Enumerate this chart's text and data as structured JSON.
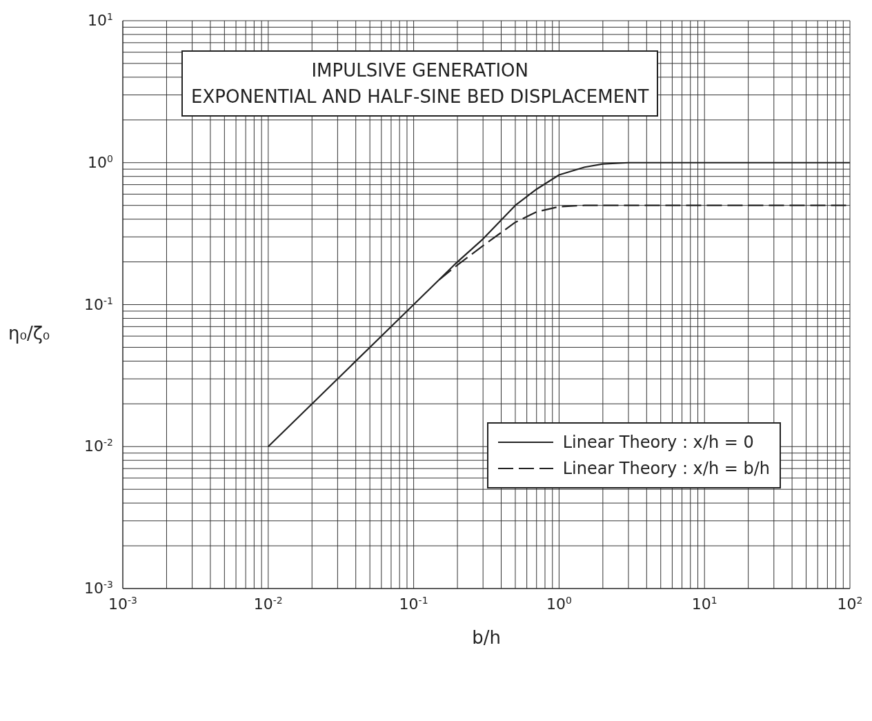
{
  "chart_data": {
    "type": "line",
    "title": "IMPULSIVE GENERATION\nEXPONENTIAL AND HALF-SINE BED DISPLACEMENT",
    "xlabel": "b/h",
    "ylabel": "η₀/ζ₀",
    "log": "xy",
    "grid": true,
    "legend": "bottom right",
    "marker": "none",
    "xlim": [
      0.001,
      100
    ],
    "ylim": [
      0.001,
      10
    ],
    "xticks": [
      {
        "value": 0.001,
        "label": "10$^{-3}$"
      },
      {
        "value": 0.002,
        "label": null
      },
      {
        "value": 0.003,
        "label": null
      },
      {
        "value": 0.004,
        "label": null
      },
      {
        "value": 0.005,
        "label": null
      },
      {
        "value": 0.006,
        "label": null
      },
      {
        "value": 0.007,
        "label": null
      },
      {
        "value": 0.008,
        "label": null
      },
      {
        "value": 0.009,
        "label": null
      },
      {
        "value": 0.01,
        "label": "10$^{-2}$"
      },
      {
        "value": 0.02,
        "label": null
      },
      {
        "value": 0.03,
        "label": null
      },
      {
        "value": 0.04,
        "label": null
      },
      {
        "value": 0.05,
        "label": null
      },
      {
        "value": 0.06,
        "label": null
      },
      {
        "value": 0.07,
        "label": null
      },
      {
        "value": 0.08,
        "label": null
      },
      {
        "value": 0.09,
        "label": null
      },
      {
        "value": 0.1,
        "label": "10$^{-1}$"
      },
      {
        "value": 0.2,
        "label": null
      },
      {
        "value": 0.3,
        "label": null
      },
      {
        "value": 0.4,
        "label": null
      },
      {
        "value": 0.5,
        "label": null
      },
      {
        "value": 0.6,
        "label": null
      },
      {
        "value": 0.7,
        "label": null
      },
      {
        "value": 0.8,
        "label": null
      },
      {
        "value": 0.9,
        "label": null
      },
      {
        "value": 1,
        "label": "10$^{0}$"
      },
      {
        "value": 2,
        "label": null
      },
      {
        "value": 3,
        "label": null
      },
      {
        "value": 4,
        "label": null
      },
      {
        "value": 5,
        "label": null
      },
      {
        "value": 6,
        "label": null
      },
      {
        "value": 7,
        "label": null
      },
      {
        "value": 8,
        "label": null
      },
      {
        "value": 9,
        "label": null
      },
      {
        "value": 10,
        "label": "10$^{1}$"
      },
      {
        "value": 20,
        "label": null
      },
      {
        "value": 30,
        "label": null
      },
      {
        "value": 40,
        "label": null
      },
      {
        "value": 50,
        "label": null
      },
      {
        "value": 60,
        "label": null
      },
      {
        "value": 70,
        "label": null
      },
      {
        "value": 80,
        "label": null
      },
      {
        "value": 90,
        "label": null
      },
      {
        "value": 100,
        "label": "10$^{2}$"
      }
    ],
    "yticks": [
      {
        "value": 0.001,
        "label": "10$^{-3}$"
      },
      {
        "value": 0.002,
        "label": null
      },
      {
        "value": 0.003,
        "label": null
      },
      {
        "value": 0.004,
        "label": null
      },
      {
        "value": 0.005,
        "label": null
      },
      {
        "value": 0.006,
        "label": null
      },
      {
        "value": 0.007,
        "label": null
      },
      {
        "value": 0.008,
        "label": null
      },
      {
        "value": 0.009,
        "label": null
      },
      {
        "value": 0.01,
        "label": "10$^{-2}$"
      },
      {
        "value": 0.02,
        "label": null
      },
      {
        "value": 0.03,
        "label": null
      },
      {
        "value": 0.04,
        "label": null
      },
      {
        "value": 0.05,
        "label": null
      },
      {
        "value": 0.06,
        "label": null
      },
      {
        "value": 0.07,
        "label": null
      },
      {
        "value": 0.08,
        "label": null
      },
      {
        "value": 0.09,
        "label": null
      },
      {
        "value": 0.1,
        "label": "10$^{-1}$"
      },
      {
        "value": 0.2,
        "label": null
      },
      {
        "value": 0.3,
        "label": null
      },
      {
        "value": 0.4,
        "label": null
      },
      {
        "value": 0.5,
        "label": null
      },
      {
        "value": 0.6,
        "label": null
      },
      {
        "value": 0.7,
        "label": null
      },
      {
        "value": 0.8,
        "label": null
      },
      {
        "value": 0.9,
        "label": null
      },
      {
        "value": 1,
        "label": "10$^{0}$"
      },
      {
        "value": 2,
        "label": null
      },
      {
        "value": 3,
        "label": null
      },
      {
        "value": 4,
        "label": null
      },
      {
        "value": 5,
        "label": null
      },
      {
        "value": 6,
        "label": null
      },
      {
        "value": 7,
        "label": null
      },
      {
        "value": 8,
        "label": null
      },
      {
        "value": 9,
        "label": null
      },
      {
        "value": 10,
        "label": "10$^{1}$"
      }
    ],
    "series": [
      {
        "name": "Linear Theory : x/h = 0",
        "color": "#222222",
        "line_style": "solid",
        "x": [
          0.01,
          0.1,
          0.2,
          0.3,
          0.5,
          0.7,
          1,
          1.5,
          2,
          3,
          100
        ],
        "values": [
          0.01,
          0.1,
          0.2,
          0.29,
          0.5,
          0.65,
          0.82,
          0.93,
          0.98,
          1,
          1
        ]
      },
      {
        "name": "Linear Theory : x/h = b/h",
        "color": "#222222",
        "line_style": "dashed",
        "x": [
          0.15,
          0.2,
          0.3,
          0.5,
          0.7,
          1,
          1.5,
          100
        ],
        "values": [
          0.15,
          0.19,
          0.26,
          0.38,
          0.45,
          0.49,
          0.5,
          0.5
        ]
      }
    ]
  }
}
